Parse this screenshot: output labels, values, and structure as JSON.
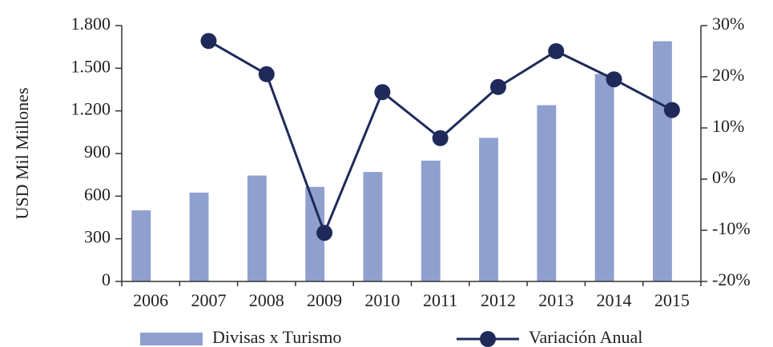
{
  "chart_data": {
    "type": "bar",
    "y_label": "USD Mil Millones",
    "categories": [
      "2006",
      "2007",
      "2008",
      "2009",
      "2010",
      "2011",
      "2012",
      "2013",
      "2014",
      "2015"
    ],
    "series": [
      {
        "name": "Divisas x Turismo",
        "type": "bar",
        "color": "#8fa0cf",
        "values": [
          500,
          625,
          745,
          665,
          770,
          850,
          1010,
          1240,
          1460,
          1690
        ]
      },
      {
        "name": "Variación Anual",
        "type": "line",
        "axis": "y2",
        "color": "#1f2a5a",
        "values": [
          null,
          27,
          20.5,
          -10.5,
          17,
          8,
          18,
          25,
          19.5,
          13.5
        ]
      }
    ],
    "ylim": [
      0,
      1800
    ],
    "yticks": [
      0,
      300,
      600,
      900,
      {
        "value": 1200,
        "label": "1.200"
      },
      {
        "value": 1500,
        "label": "1.500"
      },
      {
        "value": 1800,
        "label": "1.800"
      }
    ],
    "y2lim": [
      -20,
      30
    ],
    "y2ticks": [
      {
        "value": -20,
        "label": "-20%"
      },
      {
        "value": -10,
        "label": "-10%"
      },
      {
        "value": 0,
        "label": "0%"
      },
      {
        "value": 10,
        "label": "10%"
      },
      {
        "value": 20,
        "label": "20%"
      },
      {
        "value": 30,
        "label": "30%"
      }
    ],
    "legend": "bottom"
  }
}
